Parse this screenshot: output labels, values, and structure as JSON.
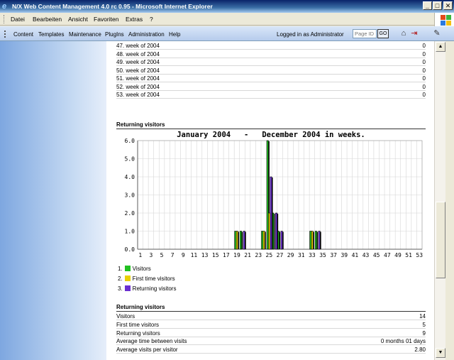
{
  "window": {
    "title": "N/X Web Content Management 4.0 rc 0.95 - Microsoft Internet Explorer",
    "minimize": "_",
    "maximize": "□",
    "close": "✕"
  },
  "menu": [
    "Datei",
    "Bearbeiten",
    "Ansicht",
    "Favoriten",
    "Extras",
    "?"
  ],
  "toolbar": {
    "nav": [
      "Content",
      "Templates",
      "Maintenance",
      "PlugIns",
      "Administration",
      "Help"
    ],
    "logged_in": "Logged in as Administrator",
    "page_id_placeholder": "Page ID",
    "go_label": "GO",
    "icons": [
      "home-icon",
      "logout-icon",
      "edit-tool-icon"
    ]
  },
  "weeks_table": [
    {
      "label": "47. week of 2004",
      "value": "0"
    },
    {
      "label": "48. week of 2004",
      "value": "0"
    },
    {
      "label": "49. week of 2004",
      "value": "0"
    },
    {
      "label": "50. week of 2004",
      "value": "0"
    },
    {
      "label": "51. week of 2004",
      "value": "0"
    },
    {
      "label": "52. week of 2004",
      "value": "0"
    },
    {
      "label": "53. week of 2004",
      "value": "0"
    }
  ],
  "chart_section_title": "Returning visitors",
  "chart_data": {
    "type": "bar",
    "title": "January 2004   -   December 2004 in weeks.",
    "ylim": [
      0,
      6
    ],
    "yticks": [
      "0.0",
      "1.0",
      "2.0",
      "3.0",
      "4.0",
      "5.0",
      "6.0"
    ],
    "xticks": [
      "1",
      "3",
      "5",
      "7",
      "9",
      "11",
      "13",
      "15",
      "17",
      "19",
      "21",
      "23",
      "25",
      "27",
      "29",
      "31",
      "33",
      "35",
      "37",
      "39",
      "41",
      "43",
      "45",
      "47",
      "49",
      "51",
      "53"
    ],
    "x_count": 53,
    "grid": true,
    "series": [
      {
        "name": "Visitors",
        "color": "#22c022",
        "points": [
          [
            19,
            1
          ],
          [
            20,
            1
          ],
          [
            24,
            1
          ],
          [
            25,
            6
          ],
          [
            26,
            2
          ],
          [
            27,
            1
          ],
          [
            33,
            1
          ],
          [
            34,
            1
          ]
        ]
      },
      {
        "name": "First time visitors",
        "color": "#e8d000",
        "points": [
          [
            19,
            1
          ],
          [
            20,
            0
          ],
          [
            24,
            1
          ],
          [
            25,
            2
          ],
          [
            26,
            0
          ],
          [
            27,
            0
          ],
          [
            33,
            1
          ],
          [
            34,
            0
          ]
        ]
      },
      {
        "name": "Returning visitors",
        "color": "#6a2fd0",
        "points": [
          [
            19,
            0
          ],
          [
            20,
            1
          ],
          [
            24,
            0
          ],
          [
            25,
            4
          ],
          [
            26,
            2
          ],
          [
            27,
            1
          ],
          [
            33,
            0
          ],
          [
            34,
            1
          ]
        ]
      }
    ]
  },
  "summary_title": "Returning visitors",
  "summary": [
    {
      "label": "Visitors",
      "value": "14"
    },
    {
      "label": "First time visitors",
      "value": "5"
    },
    {
      "label": "Returning visitors",
      "value": "9"
    },
    {
      "label": "Average time between visits",
      "value": "0 months 01 days"
    },
    {
      "label": "Average visits per visitor",
      "value": "2.80"
    }
  ]
}
